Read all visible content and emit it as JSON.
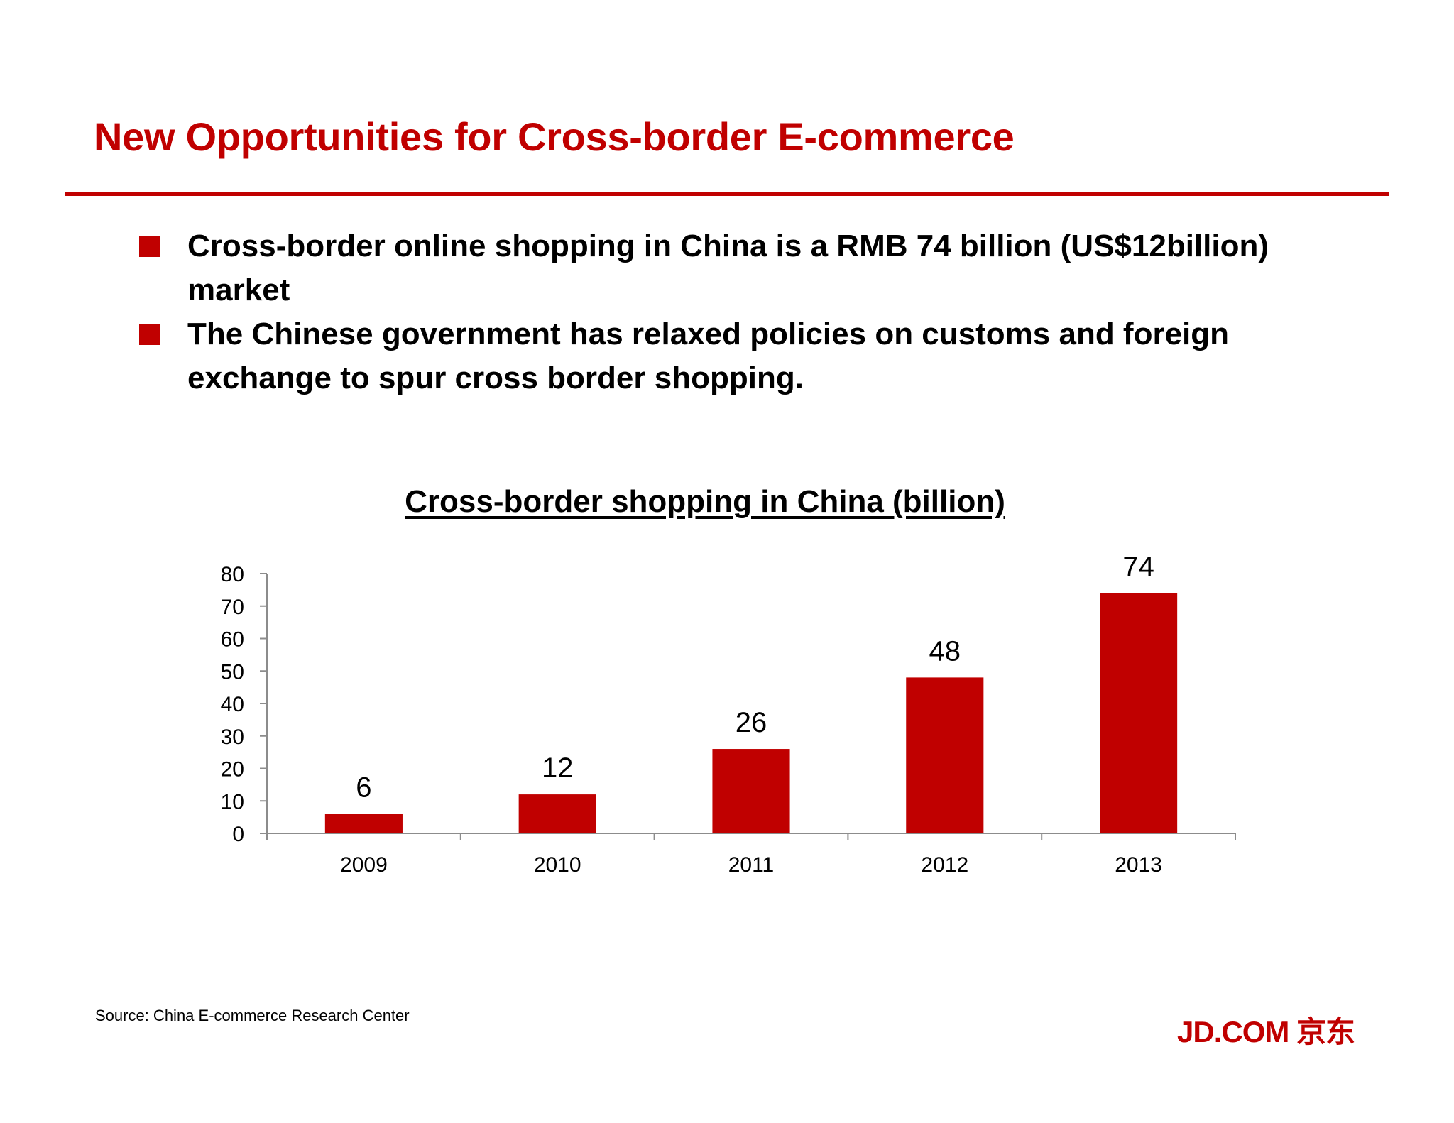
{
  "slide": {
    "title": "New Opportunities for Cross-border E-commerce",
    "bullets": [
      "Cross-border online shopping in China is a RMB 74 billion (US$12billion) market",
      "The Chinese government has relaxed policies on customs and foreign exchange to spur cross border shopping."
    ],
    "source": "Source: China E-commerce Research Center",
    "logo": "JD.COM 京东"
  },
  "colors": {
    "accent": "#c00000",
    "bar": "#c00000",
    "axis": "#8c8c8c"
  },
  "chart_data": {
    "type": "bar",
    "title": "Cross-border shopping in China (billion)",
    "categories": [
      "2009",
      "2010",
      "2011",
      "2012",
      "2013"
    ],
    "values": [
      6,
      12,
      26,
      48,
      74
    ],
    "data_labels": [
      "6",
      "12",
      "26",
      "48",
      "74"
    ],
    "ylim": [
      0,
      80
    ],
    "yticks": [
      0,
      10,
      20,
      30,
      40,
      50,
      60,
      70,
      80
    ],
    "xlabel": "",
    "ylabel": "",
    "grid": false,
    "legend": "none"
  }
}
